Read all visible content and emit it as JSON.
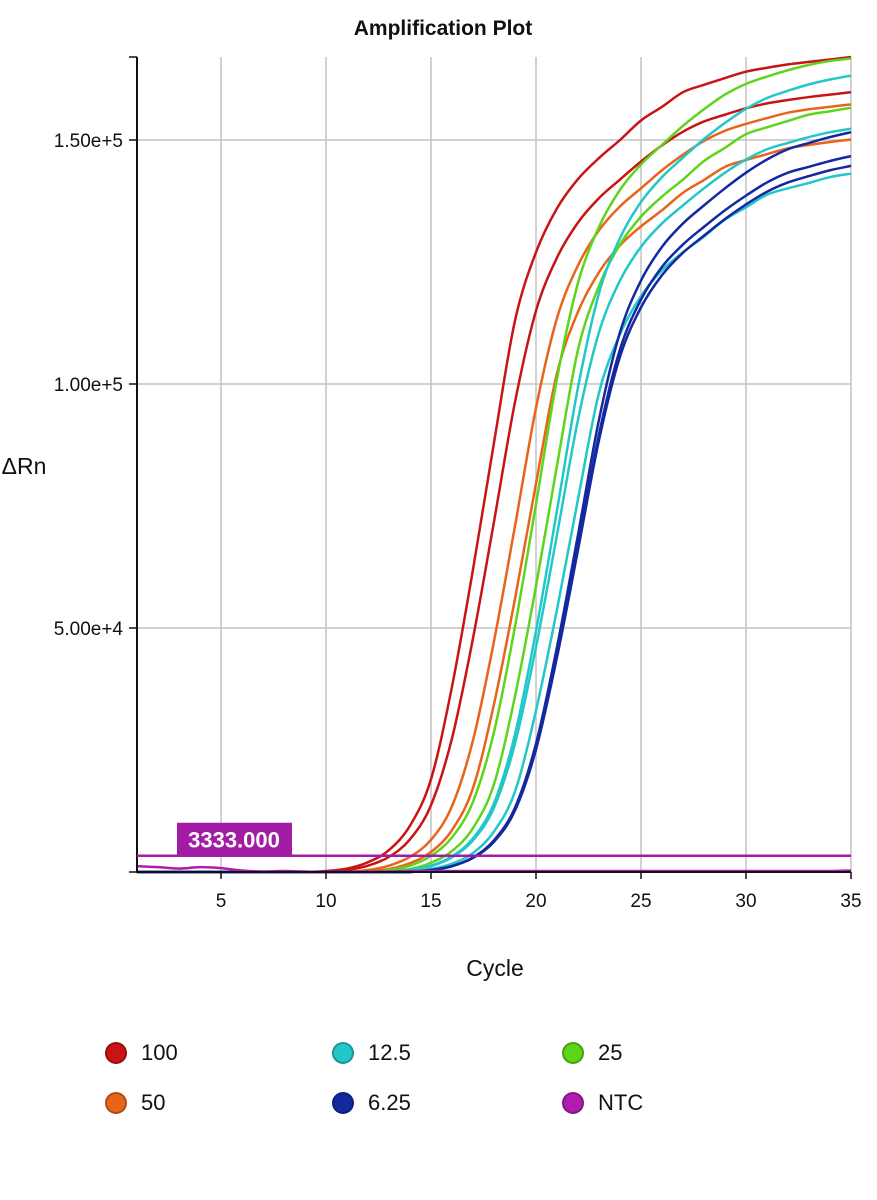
{
  "chart_data": {
    "type": "line",
    "title": "Amplification Plot",
    "xlabel": "Cycle",
    "ylabel": "ΔRn",
    "xlim": [
      1,
      35
    ],
    "ylim": [
      0,
      167000
    ],
    "xticks": [
      5,
      10,
      15,
      20,
      25,
      30,
      35
    ],
    "xtick_labels": [
      "5",
      "10",
      "15",
      "20",
      "25",
      "30",
      "35"
    ],
    "yticks": [
      50000,
      100000,
      150000
    ],
    "ytick_labels": [
      "5.00e+4",
      "1.00e+5",
      "1.50e+5"
    ],
    "grid": true,
    "legend_position": "bottom",
    "threshold": {
      "value": 3333,
      "label": "3333.000",
      "color": "#a21ca6"
    },
    "x": [
      1,
      2,
      3,
      4,
      5,
      6,
      7,
      8,
      9,
      10,
      11,
      12,
      13,
      14,
      15,
      16,
      17,
      18,
      19,
      20,
      21,
      22,
      23,
      24,
      25,
      26,
      27,
      28,
      29,
      30,
      31,
      32,
      33,
      34,
      35
    ],
    "legend": [
      {
        "label": "100",
        "color": "#c81414"
      },
      {
        "label": "50",
        "color": "#e8641a"
      },
      {
        "label": "12.5",
        "color": "#22c8c8"
      },
      {
        "label": "6.25",
        "color": "#1428a0"
      },
      {
        "label": "25",
        "color": "#5ed41a"
      },
      {
        "label": "NTC",
        "color": "#b01cb0"
      }
    ],
    "series": [
      {
        "name": "100",
        "color": "#c81414",
        "values": [
          0,
          0,
          0,
          0,
          0,
          0,
          0,
          0,
          0,
          200,
          700,
          2000,
          4500,
          9500,
          19000,
          38000,
          62000,
          88000,
          113000,
          127000,
          136000,
          142000,
          146300,
          150000,
          154000,
          156800,
          159800,
          161300,
          162700,
          164000,
          164800,
          165500,
          166000,
          166500,
          167000
        ]
      },
      {
        "name": "100",
        "color": "#c81414",
        "values": [
          0,
          0,
          0,
          0,
          0,
          0,
          0,
          0,
          0,
          0,
          400,
          1300,
          3100,
          6700,
          13700,
          27400,
          47900,
          71800,
          96300,
          115000,
          125900,
          133100,
          138100,
          141900,
          145600,
          148900,
          151700,
          153800,
          155200,
          156500,
          157500,
          158200,
          158800,
          159300,
          159800
        ]
      },
      {
        "name": "50",
        "color": "#e8641a",
        "values": [
          0,
          0,
          0,
          0,
          0,
          0,
          0,
          0,
          0,
          0,
          0,
          400,
          1300,
          3100,
          6600,
          13500,
          27000,
          47300,
          70900,
          95100,
          113500,
          124300,
          131500,
          136400,
          140100,
          143800,
          147000,
          149800,
          151900,
          153300,
          154500,
          155600,
          156300,
          156800,
          157300
        ]
      },
      {
        "name": "50",
        "color": "#e8641a",
        "values": [
          0,
          0,
          0,
          0,
          0,
          0,
          0,
          0,
          0,
          0,
          0,
          200,
          600,
          1800,
          4100,
          8600,
          17200,
          34400,
          56000,
          79600,
          102200,
          114800,
          122900,
          128400,
          132300,
          135600,
          139200,
          141800,
          144500,
          145900,
          147100,
          148300,
          149000,
          149600,
          150100
        ]
      },
      {
        "name": "25",
        "color": "#5ed41a",
        "values": [
          0,
          0,
          0,
          0,
          0,
          0,
          0,
          0,
          0,
          0,
          0,
          0,
          400,
          1300,
          3300,
          7100,
          14400,
          28700,
          50300,
          75400,
          101100,
          120700,
          132200,
          139800,
          145000,
          149000,
          152900,
          156300,
          159300,
          161500,
          163000,
          164300,
          165400,
          166200,
          166700
        ]
      },
      {
        "name": "25",
        "color": "#5ed41a",
        "values": [
          0,
          0,
          0,
          0,
          0,
          0,
          0,
          0,
          0,
          0,
          0,
          0,
          200,
          600,
          1900,
          4300,
          9000,
          18000,
          36000,
          58600,
          83300,
          107000,
          120100,
          128600,
          134300,
          138400,
          141900,
          145700,
          148400,
          151200,
          152600,
          153900,
          155200,
          155900,
          156600
        ]
      },
      {
        "name": "12.5",
        "color": "#22c8c8",
        "values": [
          0,
          0,
          0,
          0,
          0,
          0,
          0,
          0,
          0,
          0,
          0,
          0,
          0,
          400,
          1300,
          3200,
          6900,
          14100,
          28200,
          49400,
          74100,
          99300,
          118600,
          129900,
          137300,
          142400,
          146400,
          150200,
          153500,
          156400,
          158600,
          160100,
          161400,
          162400,
          163200
        ]
      },
      {
        "name": "12.5",
        "color": "#22c8c8",
        "values": [
          0,
          0,
          0,
          0,
          0,
          0,
          0,
          0,
          0,
          0,
          0,
          0,
          0,
          400,
          1200,
          3000,
          6500,
          13200,
          26300,
          46100,
          69100,
          92700,
          110600,
          121200,
          128100,
          132900,
          136600,
          140100,
          143300,
          146000,
          148100,
          149400,
          150600,
          151600,
          152300
        ]
      },
      {
        "name": "12.5",
        "color": "#22c8c8",
        "values": [
          0,
          0,
          0,
          0,
          0,
          0,
          0,
          0,
          0,
          0,
          0,
          0,
          0,
          100,
          600,
          1700,
          3900,
          8300,
          16500,
          33100,
          53800,
          76400,
          98200,
          110200,
          118000,
          123300,
          127000,
          130200,
          133700,
          136200,
          138800,
          140100,
          141200,
          142400,
          143100
        ]
      },
      {
        "name": "6.25",
        "color": "#1428a0",
        "values": [
          0,
          0,
          0,
          0,
          0,
          0,
          0,
          0,
          0,
          0,
          0,
          0,
          0,
          0,
          400,
          1200,
          3000,
          6500,
          13200,
          26300,
          46100,
          69100,
          92700,
          110600,
          121200,
          128100,
          132900,
          136600,
          140100,
          143300,
          146000,
          148100,
          149400,
          150600,
          151600
        ]
      },
      {
        "name": "6.25",
        "color": "#1428a0",
        "values": [
          0,
          0,
          0,
          0,
          0,
          0,
          0,
          0,
          0,
          0,
          0,
          0,
          0,
          0,
          400,
          1200,
          2900,
          6300,
          12700,
          25500,
          44600,
          66900,
          89700,
          107100,
          117300,
          124000,
          128600,
          132200,
          135600,
          138600,
          141300,
          143300,
          144500,
          145700,
          146700
        ]
      },
      {
        "name": "6.25",
        "color": "#1428a0",
        "values": [
          0,
          0,
          0,
          0,
          0,
          0,
          0,
          0,
          0,
          0,
          0,
          0,
          0,
          0,
          400,
          1200,
          2900,
          6200,
          12600,
          25100,
          44000,
          66000,
          88500,
          105600,
          115700,
          122300,
          126900,
          130400,
          133800,
          136800,
          139400,
          141300,
          142600,
          143800,
          144700
        ]
      },
      {
        "name": "NTC",
        "color": "#b01cb0",
        "values": [
          1200,
          1000,
          700,
          1000,
          800,
          300,
          100,
          200,
          100,
          0,
          0,
          100,
          100,
          200,
          200,
          200,
          200,
          200,
          200,
          200,
          200,
          200,
          200,
          200,
          200,
          200,
          200,
          200,
          200,
          200,
          200,
          200,
          200,
          200,
          300
        ]
      }
    ]
  }
}
